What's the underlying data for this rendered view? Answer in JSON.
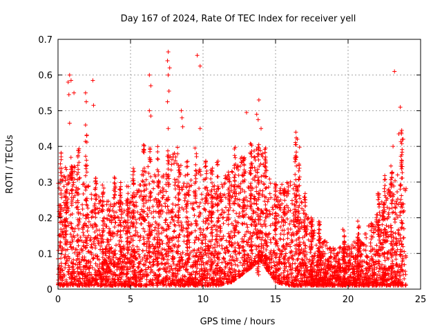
{
  "chart_data": {
    "type": "scatter",
    "title": "Day 167 of 2024, Rate Of TEC Index for receiver yell",
    "xlabel": "GPS time / hours",
    "ylabel": "ROTI / TECUs",
    "xlim": [
      0,
      25
    ],
    "ylim": [
      0,
      0.7
    ],
    "x_ticks": [
      0,
      5,
      10,
      15,
      20,
      25
    ],
    "x_tick_labels": [
      "0",
      "5",
      "10",
      "15",
      "20",
      "25"
    ],
    "y_ticks": [
      0,
      0.1,
      0.2,
      0.3,
      0.4,
      0.5,
      0.6,
      0.7
    ],
    "y_tick_labels": [
      "0",
      "0.1",
      "0.2",
      "0.3",
      "0.4",
      "0.5",
      "0.6",
      "0.7"
    ],
    "grid": true,
    "marker": "+",
    "marker_color": "#ff0000",
    "x_range_hours": [
      0,
      24
    ],
    "envelope_note": "dense points; envelope of typical upper bound per hour (data units)",
    "envelope": [
      {
        "hour": 0,
        "typical_max": 0.3,
        "typical_min": 0.01
      },
      {
        "hour": 1,
        "typical_max": 0.35,
        "typical_min": 0.01
      },
      {
        "hour": 2,
        "typical_max": 0.3,
        "typical_min": 0.01
      },
      {
        "hour": 3,
        "typical_max": 0.25,
        "typical_min": 0.01
      },
      {
        "hour": 4,
        "typical_max": 0.25,
        "typical_min": 0.01
      },
      {
        "hour": 5,
        "typical_max": 0.25,
        "typical_min": 0.01
      },
      {
        "hour": 6,
        "typical_max": 0.35,
        "typical_min": 0.01
      },
      {
        "hour": 7,
        "typical_max": 0.32,
        "typical_min": 0.01
      },
      {
        "hour": 8,
        "typical_max": 0.4,
        "typical_min": 0.01
      },
      {
        "hour": 9,
        "typical_max": 0.3,
        "typical_min": 0.01
      },
      {
        "hour": 10,
        "typical_max": 0.35,
        "typical_min": 0.01
      },
      {
        "hour": 11,
        "typical_max": 0.28,
        "typical_min": 0.01
      },
      {
        "hour": 12,
        "typical_max": 0.35,
        "typical_min": 0.02
      },
      {
        "hour": 13,
        "typical_max": 0.38,
        "typical_min": 0.05
      },
      {
        "hour": 14,
        "typical_max": 0.4,
        "typical_min": 0.08
      },
      {
        "hour": 15,
        "typical_max": 0.25,
        "typical_min": 0.02
      },
      {
        "hour": 16,
        "typical_max": 0.35,
        "typical_min": 0.01
      },
      {
        "hour": 17,
        "typical_max": 0.22,
        "typical_min": 0.01
      },
      {
        "hour": 18,
        "typical_max": 0.15,
        "typical_min": 0.01
      },
      {
        "hour": 19,
        "typical_max": 0.12,
        "typical_min": 0.01
      },
      {
        "hour": 20,
        "typical_max": 0.12,
        "typical_min": 0.01
      },
      {
        "hour": 21,
        "typical_max": 0.15,
        "typical_min": 0.01
      },
      {
        "hour": 22,
        "typical_max": 0.22,
        "typical_min": 0.01
      },
      {
        "hour": 23,
        "typical_max": 0.3,
        "typical_min": 0.01
      },
      {
        "hour": 24,
        "typical_max": 0.35,
        "typical_min": 0.01
      }
    ],
    "outliers": [
      {
        "x": 0.8,
        "y": 0.6
      },
      {
        "x": 0.7,
        "y": 0.58
      },
      {
        "x": 0.9,
        "y": 0.585
      },
      {
        "x": 0.75,
        "y": 0.545
      },
      {
        "x": 1.1,
        "y": 0.55
      },
      {
        "x": 1.9,
        "y": 0.55
      },
      {
        "x": 1.95,
        "y": 0.525
      },
      {
        "x": 2.4,
        "y": 0.585
      },
      {
        "x": 2.45,
        "y": 0.515
      },
      {
        "x": 0.8,
        "y": 0.465
      },
      {
        "x": 1.9,
        "y": 0.46
      },
      {
        "x": 6.3,
        "y": 0.6
      },
      {
        "x": 6.4,
        "y": 0.57
      },
      {
        "x": 6.3,
        "y": 0.5
      },
      {
        "x": 6.4,
        "y": 0.485
      },
      {
        "x": 7.6,
        "y": 0.665
      },
      {
        "x": 7.55,
        "y": 0.64
      },
      {
        "x": 7.7,
        "y": 0.62
      },
      {
        "x": 7.6,
        "y": 0.6
      },
      {
        "x": 7.65,
        "y": 0.555
      },
      {
        "x": 7.55,
        "y": 0.525
      },
      {
        "x": 7.6,
        "y": 0.45
      },
      {
        "x": 8.5,
        "y": 0.5
      },
      {
        "x": 8.55,
        "y": 0.48
      },
      {
        "x": 8.6,
        "y": 0.455
      },
      {
        "x": 9.6,
        "y": 0.655
      },
      {
        "x": 9.8,
        "y": 0.625
      },
      {
        "x": 9.8,
        "y": 0.45
      },
      {
        "x": 13.0,
        "y": 0.495
      },
      {
        "x": 13.7,
        "y": 0.49
      },
      {
        "x": 13.85,
        "y": 0.53
      },
      {
        "x": 13.8,
        "y": 0.475
      },
      {
        "x": 14.0,
        "y": 0.45
      },
      {
        "x": 16.4,
        "y": 0.44
      },
      {
        "x": 16.5,
        "y": 0.42
      },
      {
        "x": 23.2,
        "y": 0.61
      },
      {
        "x": 23.6,
        "y": 0.51
      },
      {
        "x": 23.7,
        "y": 0.445
      },
      {
        "x": 23.5,
        "y": 0.435
      },
      {
        "x": 23.8,
        "y": 0.42
      },
      {
        "x": 23.1,
        "y": 0.4
      }
    ],
    "spikes": [
      {
        "x": 0.2,
        "top": 0.4
      },
      {
        "x": 0.55,
        "top": 0.35
      },
      {
        "x": 0.95,
        "top": 0.38
      },
      {
        "x": 1.4,
        "top": 0.4
      },
      {
        "x": 1.95,
        "top": 0.45
      },
      {
        "x": 2.6,
        "top": 0.34
      },
      {
        "x": 3.1,
        "top": 0.3
      },
      {
        "x": 3.9,
        "top": 0.32
      },
      {
        "x": 4.3,
        "top": 0.3
      },
      {
        "x": 4.8,
        "top": 0.3
      },
      {
        "x": 5.2,
        "top": 0.34
      },
      {
        "x": 5.9,
        "top": 0.41
      },
      {
        "x": 6.35,
        "top": 0.4
      },
      {
        "x": 6.9,
        "top": 0.4
      },
      {
        "x": 7.6,
        "top": 0.4
      },
      {
        "x": 8.3,
        "top": 0.4
      },
      {
        "x": 8.9,
        "top": 0.36
      },
      {
        "x": 9.5,
        "top": 0.4
      },
      {
        "x": 10.2,
        "top": 0.36
      },
      {
        "x": 10.6,
        "top": 0.34
      },
      {
        "x": 11.0,
        "top": 0.36
      },
      {
        "x": 11.8,
        "top": 0.33
      },
      {
        "x": 12.2,
        "top": 0.4
      },
      {
        "x": 12.8,
        "top": 0.37
      },
      {
        "x": 13.3,
        "top": 0.43
      },
      {
        "x": 13.8,
        "top": 0.42
      },
      {
        "x": 14.3,
        "top": 0.42
      },
      {
        "x": 15.0,
        "top": 0.3
      },
      {
        "x": 15.6,
        "top": 0.3
      },
      {
        "x": 16.4,
        "top": 0.43
      },
      {
        "x": 16.6,
        "top": 0.4
      },
      {
        "x": 17.0,
        "top": 0.27
      },
      {
        "x": 17.5,
        "top": 0.2
      },
      {
        "x": 18.0,
        "top": 0.19
      },
      {
        "x": 19.7,
        "top": 0.18
      },
      {
        "x": 20.7,
        "top": 0.2
      },
      {
        "x": 22.1,
        "top": 0.27
      },
      {
        "x": 22.5,
        "top": 0.32
      },
      {
        "x": 23.0,
        "top": 0.36
      },
      {
        "x": 23.7,
        "top": 0.44
      }
    ]
  }
}
